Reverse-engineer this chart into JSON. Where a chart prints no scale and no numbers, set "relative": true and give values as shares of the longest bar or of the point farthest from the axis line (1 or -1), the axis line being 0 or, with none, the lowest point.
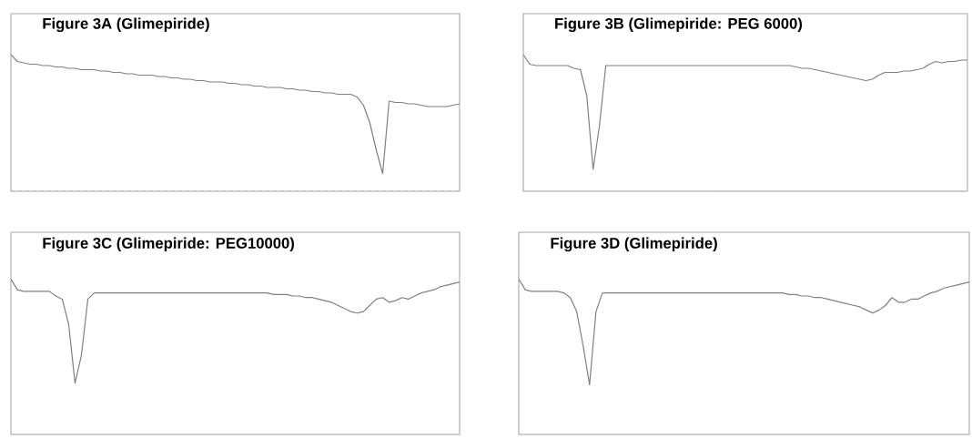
{
  "chart_data": [
    {
      "type": "line",
      "title": "Figure 3A (Glimepiride)",
      "relative": true,
      "categories": [
        null,
        null,
        null,
        null,
        null,
        null,
        null,
        null,
        null,
        null,
        null,
        null,
        null,
        null,
        null,
        null,
        null,
        null,
        null,
        null,
        null,
        null,
        null,
        null,
        null,
        null,
        null,
        null,
        null,
        null,
        null,
        null,
        null,
        null,
        null,
        null,
        null,
        null,
        null,
        null,
        null,
        null,
        null,
        null,
        null,
        null,
        null,
        null,
        null,
        null,
        null,
        null,
        null,
        null,
        null,
        null,
        null,
        null,
        null,
        null,
        null,
        null,
        null,
        null,
        null,
        null,
        null,
        null,
        null,
        null,
        null
      ],
      "series": [
        {
          "color": "#808080",
          "values": [
            1.0,
            0.95,
            0.94,
            0.93,
            0.93,
            0.92,
            0.92,
            0.91,
            0.91,
            0.9,
            0.9,
            0.89,
            0.89,
            0.89,
            0.88,
            0.88,
            0.87,
            0.87,
            0.86,
            0.86,
            0.85,
            0.85,
            0.85,
            0.84,
            0.84,
            0.83,
            0.83,
            0.82,
            0.82,
            0.81,
            0.81,
            0.8,
            0.8,
            0.8,
            0.79,
            0.79,
            0.78,
            0.78,
            0.77,
            0.77,
            0.76,
            0.76,
            0.76,
            0.75,
            0.75,
            0.74,
            0.74,
            0.73,
            0.73,
            0.72,
            0.72,
            0.71,
            0.71,
            0.71,
            0.69,
            0.63,
            0.5,
            0.3,
            0.13,
            0.66,
            0.65,
            0.65,
            0.64,
            0.64,
            0.63,
            0.62,
            0.62,
            0.62,
            0.62,
            0.63,
            0.64
          ]
        }
      ]
    },
    {
      "type": "line",
      "title": "Figure 3B (Glimepiride: PEG 6000)",
      "relative": true,
      "categories": [
        null,
        null,
        null,
        null,
        null,
        null,
        null,
        null,
        null,
        null,
        null,
        null,
        null,
        null,
        null,
        null,
        null,
        null,
        null,
        null,
        null,
        null,
        null,
        null,
        null,
        null,
        null,
        null,
        null,
        null,
        null,
        null,
        null,
        null,
        null,
        null,
        null,
        null,
        null,
        null,
        null,
        null,
        null,
        null,
        null,
        null,
        null,
        null,
        null,
        null,
        null,
        null,
        null,
        null,
        null,
        null,
        null,
        null,
        null,
        null,
        null,
        null,
        null,
        null,
        null,
        null,
        null,
        null,
        null,
        null,
        null
      ],
      "series": [
        {
          "color": "#808080",
          "values": [
            1.0,
            0.93,
            0.92,
            0.92,
            0.92,
            0.92,
            0.92,
            0.92,
            0.9,
            0.89,
            0.7,
            0.16,
            0.48,
            0.92,
            0.92,
            0.92,
            0.92,
            0.92,
            0.92,
            0.92,
            0.92,
            0.92,
            0.92,
            0.92,
            0.92,
            0.92,
            0.92,
            0.92,
            0.92,
            0.92,
            0.92,
            0.92,
            0.92,
            0.92,
            0.92,
            0.92,
            0.92,
            0.92,
            0.92,
            0.92,
            0.92,
            0.92,
            0.92,
            0.91,
            0.9,
            0.9,
            0.89,
            0.88,
            0.87,
            0.86,
            0.85,
            0.84,
            0.83,
            0.82,
            0.81,
            0.82,
            0.85,
            0.87,
            0.87,
            0.87,
            0.88,
            0.88,
            0.89,
            0.9,
            0.93,
            0.95,
            0.94,
            0.95,
            0.95,
            0.96,
            0.96
          ]
        }
      ]
    },
    {
      "type": "line",
      "title": "Figure 3C (Glimepiride: PEG10000)",
      "relative": true,
      "categories": [
        null,
        null,
        null,
        null,
        null,
        null,
        null,
        null,
        null,
        null,
        null,
        null,
        null,
        null,
        null,
        null,
        null,
        null,
        null,
        null,
        null,
        null,
        null,
        null,
        null,
        null,
        null,
        null,
        null,
        null,
        null,
        null,
        null,
        null,
        null,
        null,
        null,
        null,
        null,
        null,
        null,
        null,
        null,
        null,
        null,
        null,
        null,
        null,
        null,
        null,
        null,
        null,
        null,
        null,
        null,
        null,
        null,
        null,
        null,
        null,
        null,
        null,
        null,
        null,
        null,
        null,
        null,
        null,
        null,
        null,
        null
      ],
      "series": [
        {
          "color": "#808080",
          "values": [
            1.0,
            0.93,
            0.92,
            0.92,
            0.92,
            0.92,
            0.92,
            0.89,
            0.87,
            0.71,
            0.33,
            0.51,
            0.87,
            0.91,
            0.91,
            0.91,
            0.91,
            0.91,
            0.91,
            0.91,
            0.91,
            0.91,
            0.91,
            0.91,
            0.91,
            0.91,
            0.91,
            0.91,
            0.91,
            0.91,
            0.91,
            0.91,
            0.91,
            0.91,
            0.91,
            0.91,
            0.91,
            0.91,
            0.91,
            0.91,
            0.91,
            0.9,
            0.9,
            0.9,
            0.89,
            0.89,
            0.88,
            0.88,
            0.87,
            0.86,
            0.85,
            0.83,
            0.81,
            0.79,
            0.78,
            0.79,
            0.83,
            0.87,
            0.88,
            0.85,
            0.86,
            0.88,
            0.87,
            0.89,
            0.91,
            0.92,
            0.93,
            0.95,
            0.96,
            0.97,
            0.98
          ]
        }
      ]
    },
    {
      "type": "line",
      "title": "Figure 3D (Glimepiride)",
      "relative": true,
      "categories": [
        null,
        null,
        null,
        null,
        null,
        null,
        null,
        null,
        null,
        null,
        null,
        null,
        null,
        null,
        null,
        null,
        null,
        null,
        null,
        null,
        null,
        null,
        null,
        null,
        null,
        null,
        null,
        null,
        null,
        null,
        null,
        null,
        null,
        null,
        null,
        null,
        null,
        null,
        null,
        null,
        null,
        null,
        null,
        null,
        null,
        null,
        null,
        null,
        null,
        null,
        null,
        null,
        null,
        null,
        null,
        null,
        null,
        null,
        null,
        null,
        null,
        null,
        null,
        null,
        null,
        null,
        null,
        null,
        null,
        null,
        null
      ],
      "series": [
        {
          "color": "#808080",
          "values": [
            1.0,
            0.93,
            0.92,
            0.92,
            0.92,
            0.92,
            0.92,
            0.91,
            0.88,
            0.79,
            0.57,
            0.32,
            0.79,
            0.91,
            0.91,
            0.91,
            0.91,
            0.91,
            0.91,
            0.91,
            0.91,
            0.91,
            0.91,
            0.91,
            0.91,
            0.91,
            0.91,
            0.91,
            0.91,
            0.91,
            0.91,
            0.91,
            0.91,
            0.91,
            0.91,
            0.91,
            0.91,
            0.91,
            0.91,
            0.91,
            0.91,
            0.91,
            0.9,
            0.9,
            0.89,
            0.89,
            0.88,
            0.88,
            0.87,
            0.86,
            0.85,
            0.84,
            0.83,
            0.82,
            0.8,
            0.78,
            0.8,
            0.83,
            0.88,
            0.85,
            0.85,
            0.87,
            0.87,
            0.89,
            0.91,
            0.92,
            0.94,
            0.95,
            0.96,
            0.97,
            0.98
          ]
        }
      ]
    }
  ]
}
